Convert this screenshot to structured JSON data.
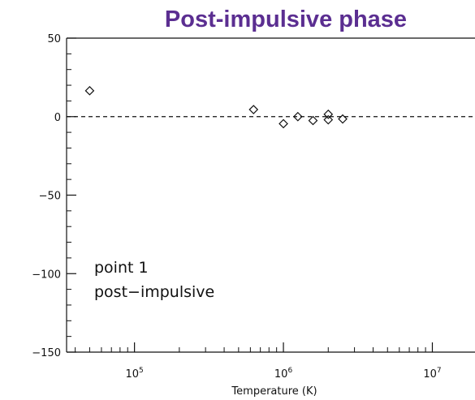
{
  "chart_data": {
    "type": "scatter",
    "title": "Post-impulsive phase",
    "xlabel": "Temperature (K)",
    "ylabel": "",
    "xscale": "log",
    "xlim": [
      35000,
      30000000
    ],
    "ylim": [
      -150,
      50
    ],
    "yticks": [
      50,
      0,
      -50,
      -100,
      -150
    ],
    "ytick_labels": [
      "50",
      "0",
      "−50",
      "−100",
      "−150"
    ],
    "xticks": [
      100000,
      1000000,
      10000000
    ],
    "xtick_labels": [
      {
        "base": "10",
        "exp": "5"
      },
      {
        "base": "10",
        "exp": "6"
      },
      {
        "base": "10",
        "exp": "7"
      }
    ],
    "reference_line": {
      "y": 0,
      "style": "dashed"
    },
    "marker": "diamond-open",
    "grid": false,
    "legend": "none",
    "annotations": [
      "point 1",
      "post−impulsive"
    ],
    "points": [
      {
        "x": 50000,
        "y": 16.5
      },
      {
        "x": 630000,
        "y": 4.5
      },
      {
        "x": 1000000,
        "y": -4.5
      },
      {
        "x": 1250000,
        "y": 0
      },
      {
        "x": 1580000,
        "y": -2.5
      },
      {
        "x": 2000000,
        "y": 1.5
      },
      {
        "x": 2000000,
        "y": -2.0
      },
      {
        "x": 2500000,
        "y": -1.5
      }
    ]
  }
}
